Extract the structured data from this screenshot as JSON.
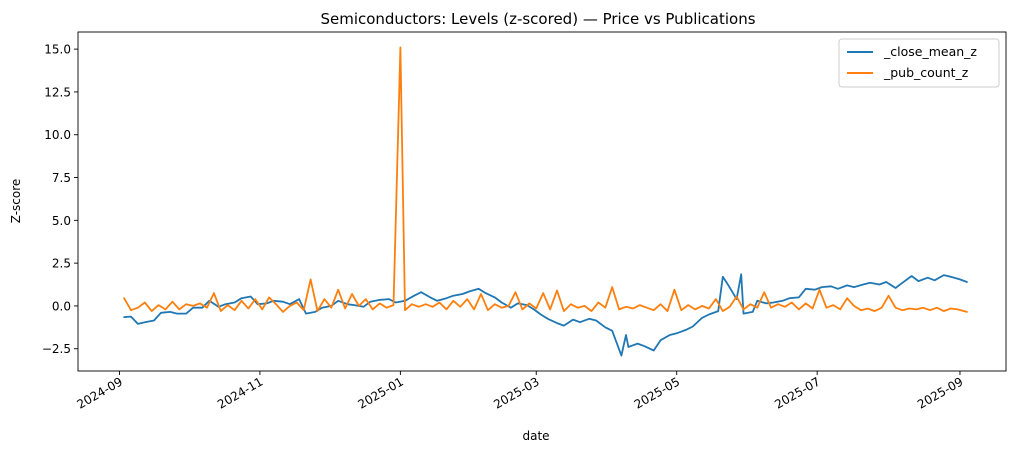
{
  "chart_data": {
    "type": "line",
    "title": "Semiconductors: Levels (z-scored) — Price vs Publications",
    "xlabel": "date",
    "ylabel": "Z-score",
    "xlim": [
      "2024-08-14",
      "2025-09-21"
    ],
    "ylim": [
      -3.8,
      16.0
    ],
    "grid": false,
    "legend_position": "top-right",
    "x_ticks": [
      {
        "date": "2024-09-01",
        "label": "2024-09"
      },
      {
        "date": "2024-11-01",
        "label": "2024-11"
      },
      {
        "date": "2025-01-01",
        "label": "2025-01"
      },
      {
        "date": "2025-03-01",
        "label": "2025-03"
      },
      {
        "date": "2025-05-01",
        "label": "2025-05"
      },
      {
        "date": "2025-07-01",
        "label": "2025-07"
      },
      {
        "date": "2025-09-01",
        "label": "2025-09"
      }
    ],
    "y_ticks": [
      {
        "value": -2.5,
        "label": "−2.5"
      },
      {
        "value": 0.0,
        "label": "0.0"
      },
      {
        "value": 2.5,
        "label": "2.5"
      },
      {
        "value": 5.0,
        "label": "5.0"
      },
      {
        "value": 7.5,
        "label": "7.5"
      },
      {
        "value": 10.0,
        "label": "10.0"
      },
      {
        "value": 12.5,
        "label": "12.5"
      },
      {
        "value": 15.0,
        "label": "15.0"
      }
    ],
    "series": [
      {
        "name": "_close_mean_z",
        "color": "#1f77b4",
        "points": [
          [
            "2024-09-03",
            -0.65
          ],
          [
            "2024-09-06",
            -0.62
          ],
          [
            "2024-09-09",
            -1.05
          ],
          [
            "2024-09-12",
            -0.95
          ],
          [
            "2024-09-16",
            -0.85
          ],
          [
            "2024-09-19",
            -0.4
          ],
          [
            "2024-09-23",
            -0.35
          ],
          [
            "2024-09-26",
            -0.45
          ],
          [
            "2024-09-30",
            -0.45
          ],
          [
            "2024-10-03",
            -0.1
          ],
          [
            "2024-10-07",
            -0.1
          ],
          [
            "2024-10-10",
            0.3
          ],
          [
            "2024-10-14",
            -0.05
          ],
          [
            "2024-10-17",
            0.1
          ],
          [
            "2024-10-21",
            0.2
          ],
          [
            "2024-10-24",
            0.45
          ],
          [
            "2024-10-28",
            0.55
          ],
          [
            "2024-10-31",
            0.1
          ],
          [
            "2024-11-04",
            0.15
          ],
          [
            "2024-11-07",
            0.3
          ],
          [
            "2024-11-11",
            0.25
          ],
          [
            "2024-11-14",
            0.1
          ],
          [
            "2024-11-18",
            0.4
          ],
          [
            "2024-11-21",
            -0.45
          ],
          [
            "2024-11-25",
            -0.35
          ],
          [
            "2024-11-28",
            -0.1
          ],
          [
            "2024-12-02",
            0.0
          ],
          [
            "2024-12-05",
            0.3
          ],
          [
            "2024-12-09",
            0.1
          ],
          [
            "2024-12-12",
            0.05
          ],
          [
            "2024-12-16",
            -0.05
          ],
          [
            "2024-12-19",
            0.25
          ],
          [
            "2024-12-23",
            0.35
          ],
          [
            "2024-12-27",
            0.4
          ],
          [
            "2024-12-30",
            0.2
          ],
          [
            "2025-01-03",
            0.3
          ],
          [
            "2025-01-07",
            0.6
          ],
          [
            "2025-01-10",
            0.8
          ],
          [
            "2025-01-14",
            0.5
          ],
          [
            "2025-01-17",
            0.3
          ],
          [
            "2025-01-21",
            0.45
          ],
          [
            "2025-01-24",
            0.6
          ],
          [
            "2025-01-28",
            0.7
          ],
          [
            "2025-01-31",
            0.85
          ],
          [
            "2025-02-04",
            1.0
          ],
          [
            "2025-02-07",
            0.75
          ],
          [
            "2025-02-11",
            0.5
          ],
          [
            "2025-02-14",
            0.2
          ],
          [
            "2025-02-18",
            -0.1
          ],
          [
            "2025-02-21",
            0.15
          ],
          [
            "2025-02-25",
            0.05
          ],
          [
            "2025-02-28",
            -0.2
          ],
          [
            "2025-03-03",
            -0.5
          ],
          [
            "2025-03-06",
            -0.75
          ],
          [
            "2025-03-10",
            -1.0
          ],
          [
            "2025-03-13",
            -1.15
          ],
          [
            "2025-03-17",
            -0.8
          ],
          [
            "2025-03-20",
            -0.95
          ],
          [
            "2025-03-24",
            -0.75
          ],
          [
            "2025-03-27",
            -0.85
          ],
          [
            "2025-03-31",
            -1.25
          ],
          [
            "2025-04-03",
            -1.45
          ],
          [
            "2025-04-07",
            -2.9
          ],
          [
            "2025-04-09",
            -1.7
          ],
          [
            "2025-04-10",
            -2.4
          ],
          [
            "2025-04-14",
            -2.2
          ],
          [
            "2025-04-17",
            -2.35
          ],
          [
            "2025-04-21",
            -2.6
          ],
          [
            "2025-04-24",
            -2.0
          ],
          [
            "2025-04-28",
            -1.7
          ],
          [
            "2025-05-01",
            -1.6
          ],
          [
            "2025-05-05",
            -1.4
          ],
          [
            "2025-05-08",
            -1.2
          ],
          [
            "2025-05-12",
            -0.7
          ],
          [
            "2025-05-15",
            -0.5
          ],
          [
            "2025-05-19",
            -0.3
          ],
          [
            "2025-05-21",
            1.7
          ],
          [
            "2025-05-23",
            1.3
          ],
          [
            "2025-05-27",
            0.4
          ],
          [
            "2025-05-29",
            1.85
          ],
          [
            "2025-05-30",
            -0.45
          ],
          [
            "2025-06-03",
            -0.35
          ],
          [
            "2025-06-05",
            0.3
          ],
          [
            "2025-06-09",
            0.15
          ],
          [
            "2025-06-12",
            0.2
          ],
          [
            "2025-06-16",
            0.3
          ],
          [
            "2025-06-19",
            0.45
          ],
          [
            "2025-06-23",
            0.5
          ],
          [
            "2025-06-26",
            1.0
          ],
          [
            "2025-06-30",
            0.95
          ],
          [
            "2025-07-03",
            1.1
          ],
          [
            "2025-07-07",
            1.15
          ],
          [
            "2025-07-10",
            1.0
          ],
          [
            "2025-07-14",
            1.2
          ],
          [
            "2025-07-17",
            1.1
          ],
          [
            "2025-07-21",
            1.25
          ],
          [
            "2025-07-24",
            1.35
          ],
          [
            "2025-07-28",
            1.25
          ],
          [
            "2025-07-31",
            1.4
          ],
          [
            "2025-08-04",
            1.05
          ],
          [
            "2025-08-07",
            1.35
          ],
          [
            "2025-08-11",
            1.75
          ],
          [
            "2025-08-14",
            1.45
          ],
          [
            "2025-08-18",
            1.65
          ],
          [
            "2025-08-21",
            1.5
          ],
          [
            "2025-08-25",
            1.8
          ],
          [
            "2025-08-28",
            1.7
          ],
          [
            "2025-09-01",
            1.55
          ],
          [
            "2025-09-04",
            1.4
          ]
        ]
      },
      {
        "name": "_pub_count_z",
        "color": "#ff7f0e",
        "points": [
          [
            "2024-09-03",
            0.45
          ],
          [
            "2024-09-06",
            -0.25
          ],
          [
            "2024-09-09",
            -0.1
          ],
          [
            "2024-09-12",
            0.2
          ],
          [
            "2024-09-15",
            -0.3
          ],
          [
            "2024-09-18",
            0.05
          ],
          [
            "2024-09-21",
            -0.2
          ],
          [
            "2024-09-24",
            0.25
          ],
          [
            "2024-09-27",
            -0.2
          ],
          [
            "2024-09-30",
            0.1
          ],
          [
            "2024-10-03",
            0.0
          ],
          [
            "2024-10-06",
            0.15
          ],
          [
            "2024-10-09",
            -0.1
          ],
          [
            "2024-10-12",
            0.75
          ],
          [
            "2024-10-15",
            -0.3
          ],
          [
            "2024-10-18",
            0.05
          ],
          [
            "2024-10-21",
            -0.25
          ],
          [
            "2024-10-24",
            0.3
          ],
          [
            "2024-10-27",
            -0.15
          ],
          [
            "2024-10-30",
            0.4
          ],
          [
            "2024-11-02",
            -0.2
          ],
          [
            "2024-11-05",
            0.5
          ],
          [
            "2024-11-08",
            0.1
          ],
          [
            "2024-11-11",
            -0.35
          ],
          [
            "2024-11-14",
            0.0
          ],
          [
            "2024-11-17",
            0.2
          ],
          [
            "2024-11-20",
            -0.25
          ],
          [
            "2024-11-23",
            1.55
          ],
          [
            "2024-11-26",
            -0.3
          ],
          [
            "2024-11-29",
            0.4
          ],
          [
            "2024-12-02",
            -0.1
          ],
          [
            "2024-12-05",
            0.95
          ],
          [
            "2024-12-08",
            -0.15
          ],
          [
            "2024-12-11",
            0.7
          ],
          [
            "2024-12-14",
            0.0
          ],
          [
            "2024-12-17",
            0.4
          ],
          [
            "2024-12-20",
            -0.2
          ],
          [
            "2024-12-23",
            0.15
          ],
          [
            "2024-12-26",
            -0.1
          ],
          [
            "2024-12-29",
            0.05
          ],
          [
            "2025-01-01",
            15.1
          ],
          [
            "2025-01-03",
            -0.25
          ],
          [
            "2025-01-06",
            0.1
          ],
          [
            "2025-01-09",
            -0.05
          ],
          [
            "2025-01-12",
            0.1
          ],
          [
            "2025-01-15",
            -0.05
          ],
          [
            "2025-01-18",
            0.2
          ],
          [
            "2025-01-21",
            -0.2
          ],
          [
            "2025-01-24",
            0.3
          ],
          [
            "2025-01-27",
            -0.05
          ],
          [
            "2025-01-30",
            0.4
          ],
          [
            "2025-02-02",
            -0.2
          ],
          [
            "2025-02-05",
            0.7
          ],
          [
            "2025-02-08",
            -0.25
          ],
          [
            "2025-02-11",
            0.1
          ],
          [
            "2025-02-14",
            -0.1
          ],
          [
            "2025-02-17",
            0.0
          ],
          [
            "2025-02-20",
            0.8
          ],
          [
            "2025-02-23",
            -0.2
          ],
          [
            "2025-02-26",
            0.15
          ],
          [
            "2025-03-01",
            -0.15
          ],
          [
            "2025-03-04",
            0.75
          ],
          [
            "2025-03-07",
            -0.2
          ],
          [
            "2025-03-10",
            0.9
          ],
          [
            "2025-03-13",
            -0.3
          ],
          [
            "2025-03-16",
            0.1
          ],
          [
            "2025-03-19",
            -0.1
          ],
          [
            "2025-03-22",
            0.0
          ],
          [
            "2025-03-25",
            -0.3
          ],
          [
            "2025-03-28",
            0.2
          ],
          [
            "2025-03-31",
            -0.1
          ],
          [
            "2025-04-03",
            1.1
          ],
          [
            "2025-04-06",
            -0.2
          ],
          [
            "2025-04-09",
            -0.05
          ],
          [
            "2025-04-12",
            -0.15
          ],
          [
            "2025-04-15",
            0.05
          ],
          [
            "2025-04-18",
            -0.1
          ],
          [
            "2025-04-21",
            -0.25
          ],
          [
            "2025-04-24",
            0.1
          ],
          [
            "2025-04-27",
            -0.3
          ],
          [
            "2025-04-30",
            0.95
          ],
          [
            "2025-05-03",
            -0.25
          ],
          [
            "2025-05-06",
            0.05
          ],
          [
            "2025-05-09",
            -0.2
          ],
          [
            "2025-05-12",
            0.0
          ],
          [
            "2025-05-15",
            -0.15
          ],
          [
            "2025-05-18",
            0.4
          ],
          [
            "2025-05-21",
            -0.3
          ],
          [
            "2025-05-24",
            -0.05
          ],
          [
            "2025-05-27",
            0.55
          ],
          [
            "2025-05-30",
            -0.2
          ],
          [
            "2025-06-02",
            0.1
          ],
          [
            "2025-06-05",
            -0.1
          ],
          [
            "2025-06-08",
            0.8
          ],
          [
            "2025-06-11",
            -0.1
          ],
          [
            "2025-06-14",
            0.1
          ],
          [
            "2025-06-17",
            -0.05
          ],
          [
            "2025-06-20",
            0.2
          ],
          [
            "2025-06-23",
            -0.2
          ],
          [
            "2025-06-26",
            0.15
          ],
          [
            "2025-06-29",
            -0.15
          ],
          [
            "2025-07-02",
            0.95
          ],
          [
            "2025-07-05",
            -0.1
          ],
          [
            "2025-07-08",
            0.05
          ],
          [
            "2025-07-11",
            -0.2
          ],
          [
            "2025-07-14",
            0.45
          ],
          [
            "2025-07-17",
            0.0
          ],
          [
            "2025-07-20",
            -0.25
          ],
          [
            "2025-07-23",
            -0.15
          ],
          [
            "2025-07-26",
            -0.3
          ],
          [
            "2025-07-29",
            -0.1
          ],
          [
            "2025-08-01",
            0.6
          ],
          [
            "2025-08-04",
            -0.1
          ],
          [
            "2025-08-07",
            -0.25
          ],
          [
            "2025-08-10",
            -0.15
          ],
          [
            "2025-08-13",
            -0.2
          ],
          [
            "2025-08-16",
            -0.1
          ],
          [
            "2025-08-19",
            -0.25
          ],
          [
            "2025-08-22",
            -0.1
          ],
          [
            "2025-08-25",
            -0.3
          ],
          [
            "2025-08-28",
            -0.15
          ],
          [
            "2025-08-31",
            -0.2
          ],
          [
            "2025-09-04",
            -0.35
          ]
        ]
      }
    ]
  }
}
